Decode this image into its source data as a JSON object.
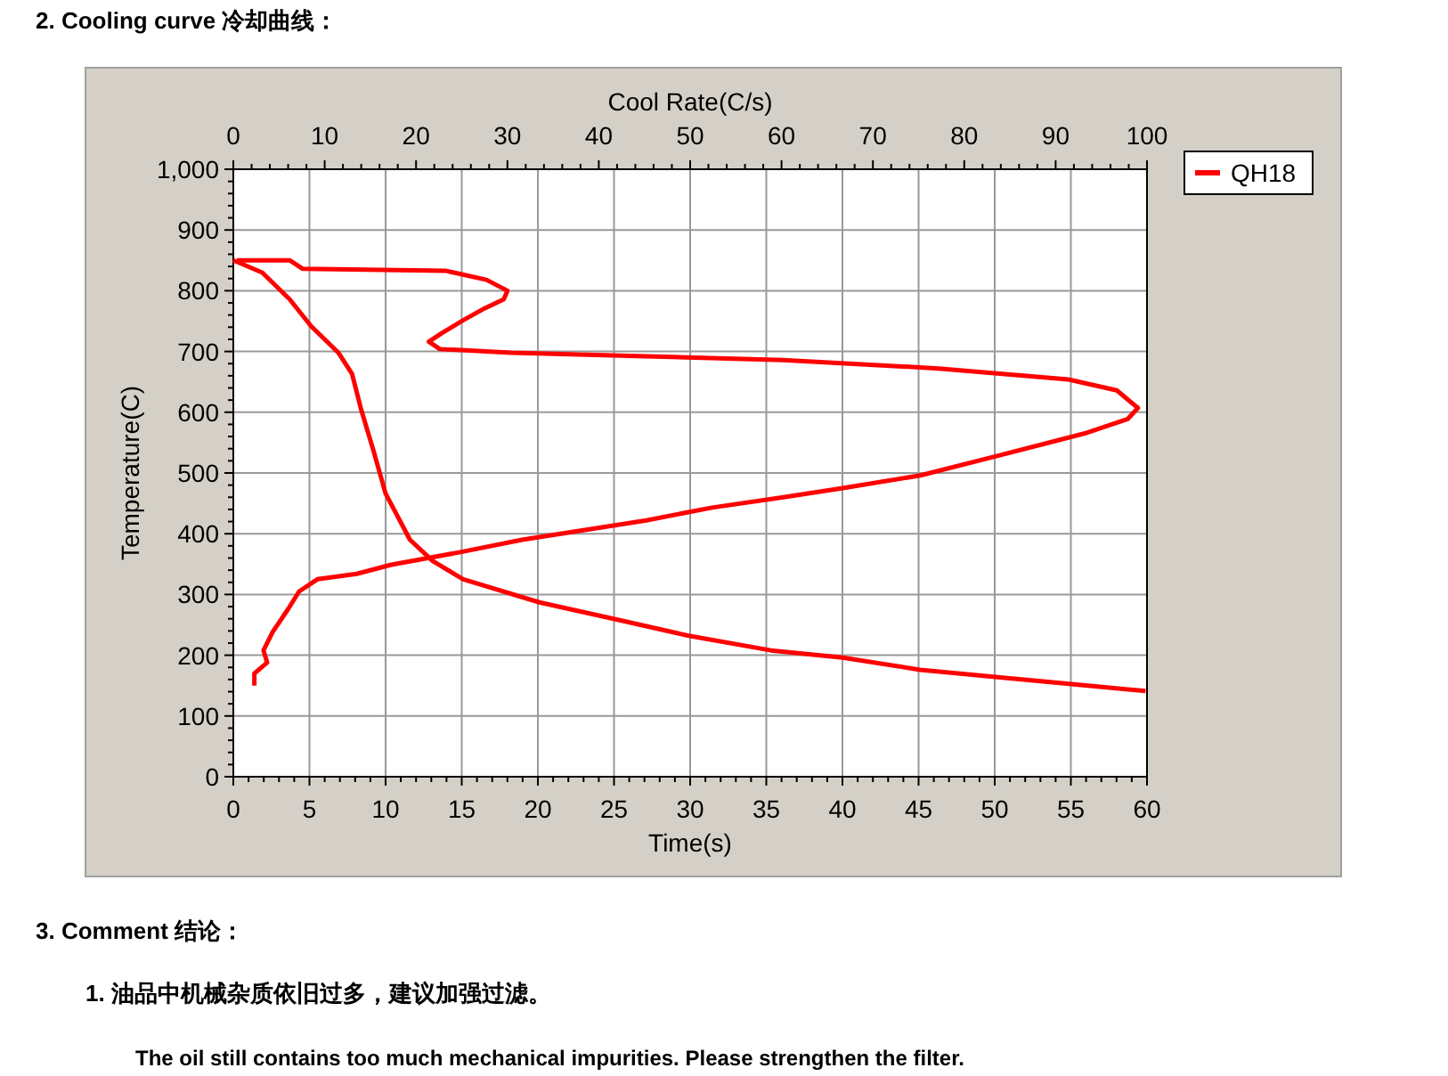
{
  "chart_data": {
    "type": "line",
    "title": "2.    Cooling curve  冷却曲线：",
    "xlabel": "Time(s)",
    "x2label": "Cool Rate(C/s)",
    "ylabel": "Temperature(C)",
    "xlim": [
      0,
      60
    ],
    "xticks": [
      0,
      5,
      10,
      15,
      20,
      25,
      30,
      35,
      40,
      45,
      50,
      55,
      60
    ],
    "x2lim": [
      0,
      100
    ],
    "x2ticks": [
      0,
      10,
      20,
      30,
      40,
      50,
      60,
      70,
      80,
      90,
      100
    ],
    "ylim": [
      0,
      1000
    ],
    "yticks": [
      0,
      100,
      200,
      300,
      400,
      500,
      600,
      700,
      800,
      900,
      {
        "value": 1000,
        "label": "1,000"
      }
    ],
    "grid": true,
    "legend": "top right",
    "line_style": "solid",
    "marker": "none",
    "series": [
      {
        "name": "QH18",
        "color": "#ff0000",
        "x": [
          0,
          1.9,
          3.7,
          5.1,
          6.9,
          7.8,
          8.4,
          9.2,
          10.0,
          11.6,
          13.1,
          15.1,
          20.1,
          25.3,
          29.9,
          35.3,
          40,
          45.1,
          50.2,
          59.9
        ],
        "values": [
          850,
          830,
          786,
          742,
          698,
          663,
          604,
          537,
          466,
          390,
          355,
          325,
          287,
          258,
          232,
          208,
          196,
          176,
          164,
          141
        ]
      },
      {
        "color": "#ff0000",
        "axis": "x2",
        "x": [
          0.4,
          6.2,
          7.6,
          23.2,
          27.7,
          30,
          29.6,
          27.5,
          25.1,
          22.8,
          21.4,
          22.6,
          30.4,
          45.2,
          60.2,
          77.2,
          91.4,
          96.7,
          99,
          97.9,
          93.4,
          83.6,
          75.2,
          66.7,
          60.2,
          52.4,
          45.2,
          31.6,
          24.6,
          17.3,
          13.5,
          9.2,
          7.2,
          6.0,
          4.3,
          3.3,
          3.7,
          2.3,
          2.3
        ],
        "values": [
          850,
          850,
          836,
          833,
          818,
          800,
          786,
          771,
          751,
          730,
          716,
          704,
          698,
          692,
          686,
          672,
          654,
          636,
          607,
          589,
          566,
          528,
          496,
          475,
          460,
          443,
          422,
          390,
          369,
          349,
          334,
          325,
          305,
          276,
          238,
          208,
          188,
          170,
          150
        ]
      }
    ],
    "annotations": [
      "3.    Comment  结论：",
      "1.    油品中机械杂质依旧过多，建议加强过滤。",
      "The oil still contains too much mechanical impurities. Please strengthen the filter."
    ]
  }
}
